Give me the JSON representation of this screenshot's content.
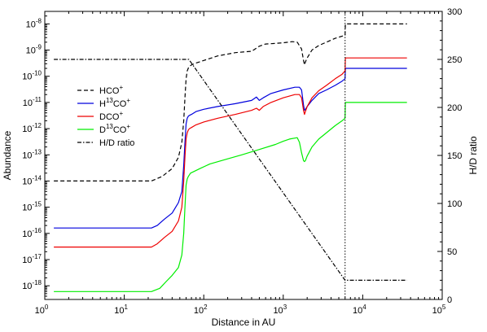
{
  "chart_data": {
    "type": "line",
    "xlabel": "Distance in AU",
    "ylabel_left": "Abundance",
    "ylabel_right": "H/D ratio",
    "x_scale": "log",
    "y_left_scale": "log",
    "xlim": [
      1,
      100000
    ],
    "ylim_left": [
      3e-19,
      3e-08
    ],
    "ylim_right": [
      0,
      300
    ],
    "x_ticks": [
      {
        "base": "10",
        "exp": "0"
      },
      {
        "base": "10",
        "exp": "1"
      },
      {
        "base": "10",
        "exp": "2"
      },
      {
        "base": "10",
        "exp": "3"
      },
      {
        "base": "10",
        "exp": "4"
      },
      {
        "base": "10",
        "exp": "5"
      }
    ],
    "y_left_ticks": [
      {
        "base": "10",
        "exp": "-18"
      },
      {
        "base": "10",
        "exp": "-17"
      },
      {
        "base": "10",
        "exp": "-16"
      },
      {
        "base": "10",
        "exp": "-15"
      },
      {
        "base": "10",
        "exp": "-14"
      },
      {
        "base": "10",
        "exp": "-13"
      },
      {
        "base": "10",
        "exp": "-12"
      },
      {
        "base": "10",
        "exp": "-11"
      },
      {
        "base": "10",
        "exp": "-10"
      },
      {
        "base": "10",
        "exp": "-9"
      },
      {
        "base": "10",
        "exp": "-8"
      }
    ],
    "y_right_ticks": [
      "0",
      "50",
      "100",
      "150",
      "200",
      "250",
      "300"
    ],
    "vline_x": 6000,
    "legend_position": "left",
    "series": [
      {
        "name": "HCO",
        "sup": "+",
        "color": "#000000",
        "dash": "dashed",
        "axis": "left",
        "x": [
          1.3,
          22,
          30,
          40,
          48,
          53,
          56,
          58,
          60,
          62,
          65,
          70,
          80,
          100,
          150,
          250,
          400,
          500,
          600,
          800,
          1000,
          1300,
          1500,
          1700,
          1800,
          1850,
          1900,
          2000,
          2300,
          2800,
          3500,
          4500,
          5500,
          6000,
          6050,
          7000,
          10000,
          20000,
          36000
        ],
        "y": [
          1e-14,
          1e-14,
          1.5e-14,
          3e-14,
          8e-14,
          3e-13,
          2e-12,
          1.5e-11,
          8e-11,
          1.6e-10,
          2.3e-10,
          2.7e-10,
          3.2e-10,
          4e-10,
          6e-10,
          8e-10,
          9e-10,
          1.4e-09,
          1.7e-09,
          1.8e-09,
          1.9e-09,
          2.1e-09,
          2e-09,
          1.1e-09,
          4e-10,
          2.7e-10,
          3.5e-10,
          5e-10,
          1e-09,
          1.5e-09,
          2e-09,
          2.8e-09,
          3.4e-09,
          3.6e-09,
          1e-08,
          1e-08,
          1e-08,
          1e-08,
          1e-08
        ]
      },
      {
        "name": "H",
        "sup": "13",
        "name_tail": "CO",
        "sup_tail": "+",
        "color": "#0000dd",
        "dash": "solid",
        "axis": "left",
        "x": [
          1.3,
          22,
          26,
          32,
          40,
          48,
          53,
          56,
          58,
          60,
          62,
          64,
          66,
          70,
          80,
          100,
          150,
          250,
          400,
          460,
          500,
          560,
          700,
          1000,
          1400,
          1600,
          1700,
          1800,
          1850,
          1900,
          2000,
          2300,
          2800,
          3500,
          4500,
          5500,
          6000,
          6050,
          10000,
          20000,
          36000
        ],
        "y": [
          1.6e-16,
          1.6e-16,
          2e-16,
          3.5e-16,
          6e-16,
          1.5e-15,
          4e-15,
          4e-14,
          3e-13,
          1.5e-12,
          2.5e-12,
          3e-12,
          3.2e-12,
          3.5e-12,
          4.5e-12,
          5.5e-12,
          7e-12,
          9e-12,
          1.2e-11,
          1.6e-11,
          1.2e-11,
          1.5e-11,
          2.2e-11,
          3e-11,
          3.8e-11,
          3.8e-11,
          3e-11,
          8e-12,
          5e-12,
          5.5e-12,
          7e-12,
          1.2e-11,
          2.2e-11,
          3e-11,
          4.5e-11,
          6.5e-11,
          8e-11,
          2e-10,
          2e-10,
          2e-10,
          2e-10
        ]
      },
      {
        "name": "DCO",
        "sup": "+",
        "color": "#ee0000",
        "dash": "solid",
        "axis": "left",
        "x": [
          1.3,
          22,
          26,
          32,
          40,
          48,
          53,
          56,
          58,
          60,
          62,
          64,
          66,
          70,
          80,
          100,
          150,
          250,
          400,
          460,
          500,
          560,
          700,
          1000,
          1400,
          1600,
          1700,
          1800,
          1850,
          1900,
          2000,
          2300,
          2800,
          3500,
          4500,
          5500,
          6000,
          6050,
          10000,
          20000,
          36000
        ],
        "y": [
          3e-17,
          3e-17,
          4e-17,
          7e-17,
          1.2e-16,
          3e-16,
          1e-15,
          1e-14,
          8e-14,
          4e-13,
          7e-13,
          9e-13,
          1e-12,
          1.1e-12,
          1.4e-12,
          1.8e-12,
          2.5e-12,
          3.5e-12,
          5e-12,
          6e-12,
          5e-12,
          7e-12,
          1e-11,
          1.5e-11,
          2e-11,
          2e-11,
          1.5e-11,
          5e-12,
          3.5e-12,
          4.5e-12,
          7e-12,
          1.5e-11,
          2.8e-11,
          4.5e-11,
          8e-11,
          1.2e-10,
          1.6e-10,
          5e-10,
          5e-10,
          5e-10,
          5e-10
        ]
      },
      {
        "name": "D",
        "sup": "13",
        "name_tail": "CO",
        "sup_tail": "+",
        "color": "#00ee00",
        "dash": "solid",
        "axis": "left",
        "x": [
          1.3,
          22,
          28,
          34,
          40,
          48,
          53,
          56,
          58,
          60,
          62,
          64,
          68,
          75,
          90,
          120,
          200,
          300,
          500,
          800,
          1000,
          1200,
          1500,
          1600,
          1700,
          1800,
          1850,
          1900,
          2000,
          2300,
          2800,
          3500,
          4500,
          5500,
          6000,
          6050,
          10000,
          20000,
          36000
        ],
        "y": [
          6e-19,
          6e-19,
          8e-19,
          1.5e-18,
          2.5e-18,
          5e-18,
          1.5e-17,
          1e-16,
          1e-15,
          7e-15,
          1.2e-14,
          1.5e-14,
          2e-14,
          2.3e-14,
          3e-14,
          4.5e-14,
          7e-14,
          1e-13,
          1.6e-13,
          2.5e-13,
          3.3e-13,
          4e-13,
          4.5e-13,
          3e-13,
          1.2e-13,
          6e-14,
          5.5e-14,
          6e-14,
          9e-14,
          2e-13,
          4e-13,
          7e-13,
          1.3e-12,
          2e-12,
          2.5e-12,
          1e-11,
          1e-11,
          1e-11,
          1e-11
        ]
      },
      {
        "name": "H/D ratio",
        "color": "#000000",
        "dash": "dashdot",
        "axis": "right",
        "x": [
          1.3,
          65,
          6000,
          36000
        ],
        "y": [
          250,
          250,
          20,
          20
        ]
      }
    ]
  }
}
